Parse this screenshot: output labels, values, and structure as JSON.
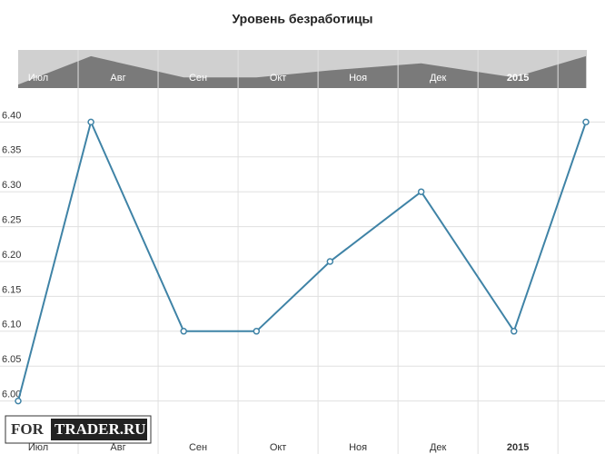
{
  "chart_data": {
    "type": "line",
    "title": "Уровень безработицы",
    "x": [
      0.25,
      1.16,
      2.32,
      3.23,
      4.15,
      5.29,
      6.45,
      7.35
    ],
    "series": [
      {
        "name": "Уровень безработицы",
        "color": "#3f83a6",
        "values": [
          6.0,
          6.4,
          6.1,
          6.1,
          6.2,
          6.3,
          6.1,
          6.4
        ]
      }
    ],
    "xlim": [
      0.25,
      7.35
    ],
    "xticks": [
      {
        "value": 0.5,
        "label": "Июл"
      },
      {
        "value": 1.5,
        "label": "Авг"
      },
      {
        "value": 2.5,
        "label": "Сен"
      },
      {
        "value": 3.5,
        "label": "Окт"
      },
      {
        "value": 4.5,
        "label": "Ноя"
      },
      {
        "value": 5.5,
        "label": "Дек"
      },
      {
        "value": 6.5,
        "label": "2015"
      }
    ],
    "ylim": [
      5.95,
      6.45
    ],
    "yticks": [
      {
        "value": 6.0,
        "label": "6.00"
      },
      {
        "value": 6.05,
        "label": "6.05"
      },
      {
        "value": 6.1,
        "label": "6.10"
      },
      {
        "value": 6.15,
        "label": "6.15"
      },
      {
        "value": 6.2,
        "label": "6.20"
      },
      {
        "value": 6.25,
        "label": "6.25"
      },
      {
        "value": 6.3,
        "label": "6.30"
      },
      {
        "value": 6.35,
        "label": "6.35"
      },
      {
        "value": 6.4,
        "label": "6.40"
      }
    ],
    "grid": true,
    "watermark": [
      "FOR",
      "TRADER.RU"
    ]
  }
}
